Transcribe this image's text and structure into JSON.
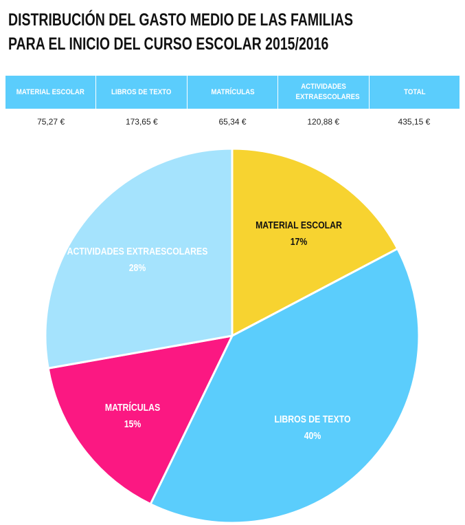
{
  "title": {
    "line1": "DISTRIBUCIÓN DEL GASTO MEDIO DE LAS FAMILIAS",
    "line2": "PARA EL INICIO DEL CURSO ESCOLAR 2015/2016"
  },
  "table": {
    "headers": [
      "MATERIAL ESCOLAR",
      "LIBROS DE TEXTO",
      "MATRÍCULAS",
      "ACTIVIDADES EXTRAESCOLARES",
      "TOTAL"
    ],
    "values": [
      "75,27 €",
      "173,65 €",
      "65,34 €",
      "120,88 €",
      "435,15 €"
    ]
  },
  "chart_data": {
    "type": "pie",
    "title": "DISTRIBUCIÓN DEL GASTO MEDIO DE LAS FAMILIAS PARA EL INICIO DEL CURSO ESCOLAR 2015/2016",
    "slices": [
      {
        "label": "MATERIAL ESCOLAR",
        "value": 75.27,
        "percent_label": "17%",
        "color": "#f7d330",
        "text_color": "#111111"
      },
      {
        "label": "LIBROS DE TEXTO",
        "value": 173.65,
        "percent_label": "40%",
        "color": "#5bcdfc",
        "text_color": "#ffffff"
      },
      {
        "label": "MATRÍCULAS",
        "value": 65.34,
        "percent_label": "15%",
        "color": "#fb1882",
        "text_color": "#ffffff"
      },
      {
        "label": "ACTIVIDADES EXTRAESCOLARES",
        "value": 120.88,
        "percent_label": "28%",
        "color": "#a5e3fd",
        "text_color": "#ffffff"
      }
    ]
  }
}
